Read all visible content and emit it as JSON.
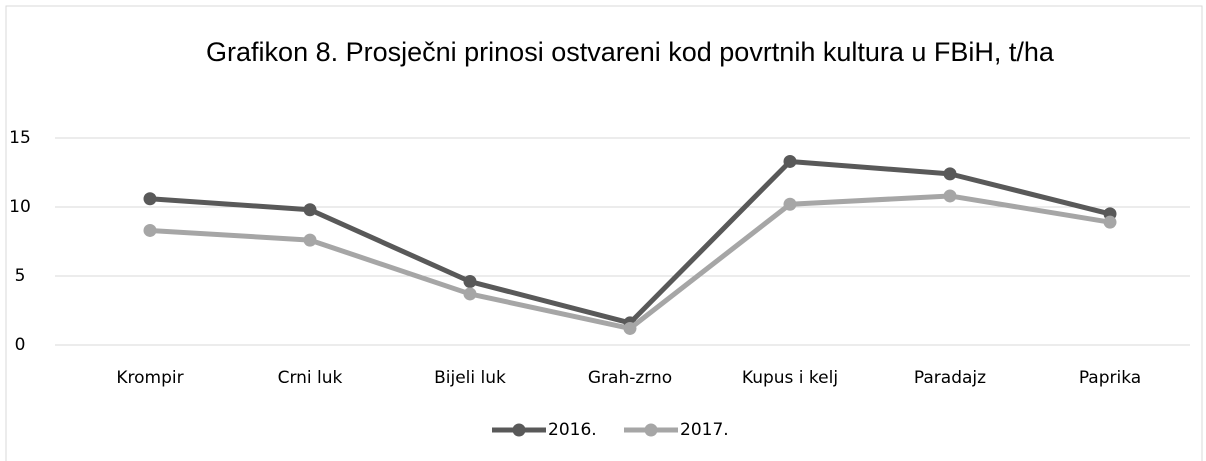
{
  "chart_data": {
    "type": "line",
    "title": "Grafikon 8. Prosječni prinosi ostvareni kod povrtnih kultura u FBiH, t/ha",
    "categories": [
      "Krompir",
      "Crni luk",
      "Bijeli luk",
      "Grah-zrno",
      "Kupus i kelj",
      "Paradajz",
      "Paprika"
    ],
    "series": [
      {
        "name": "2016.",
        "color": "#595959",
        "values": [
          10.6,
          9.8,
          4.6,
          1.6,
          13.3,
          12.4,
          9.5
        ]
      },
      {
        "name": "2017.",
        "color": "#a6a6a6",
        "values": [
          8.3,
          7.6,
          3.7,
          1.2,
          10.2,
          10.8,
          8.9
        ]
      }
    ],
    "ylim": [
      0,
      15
    ],
    "yticks": [
      0,
      5,
      10,
      15
    ],
    "grid": true,
    "legend": "bottom"
  }
}
